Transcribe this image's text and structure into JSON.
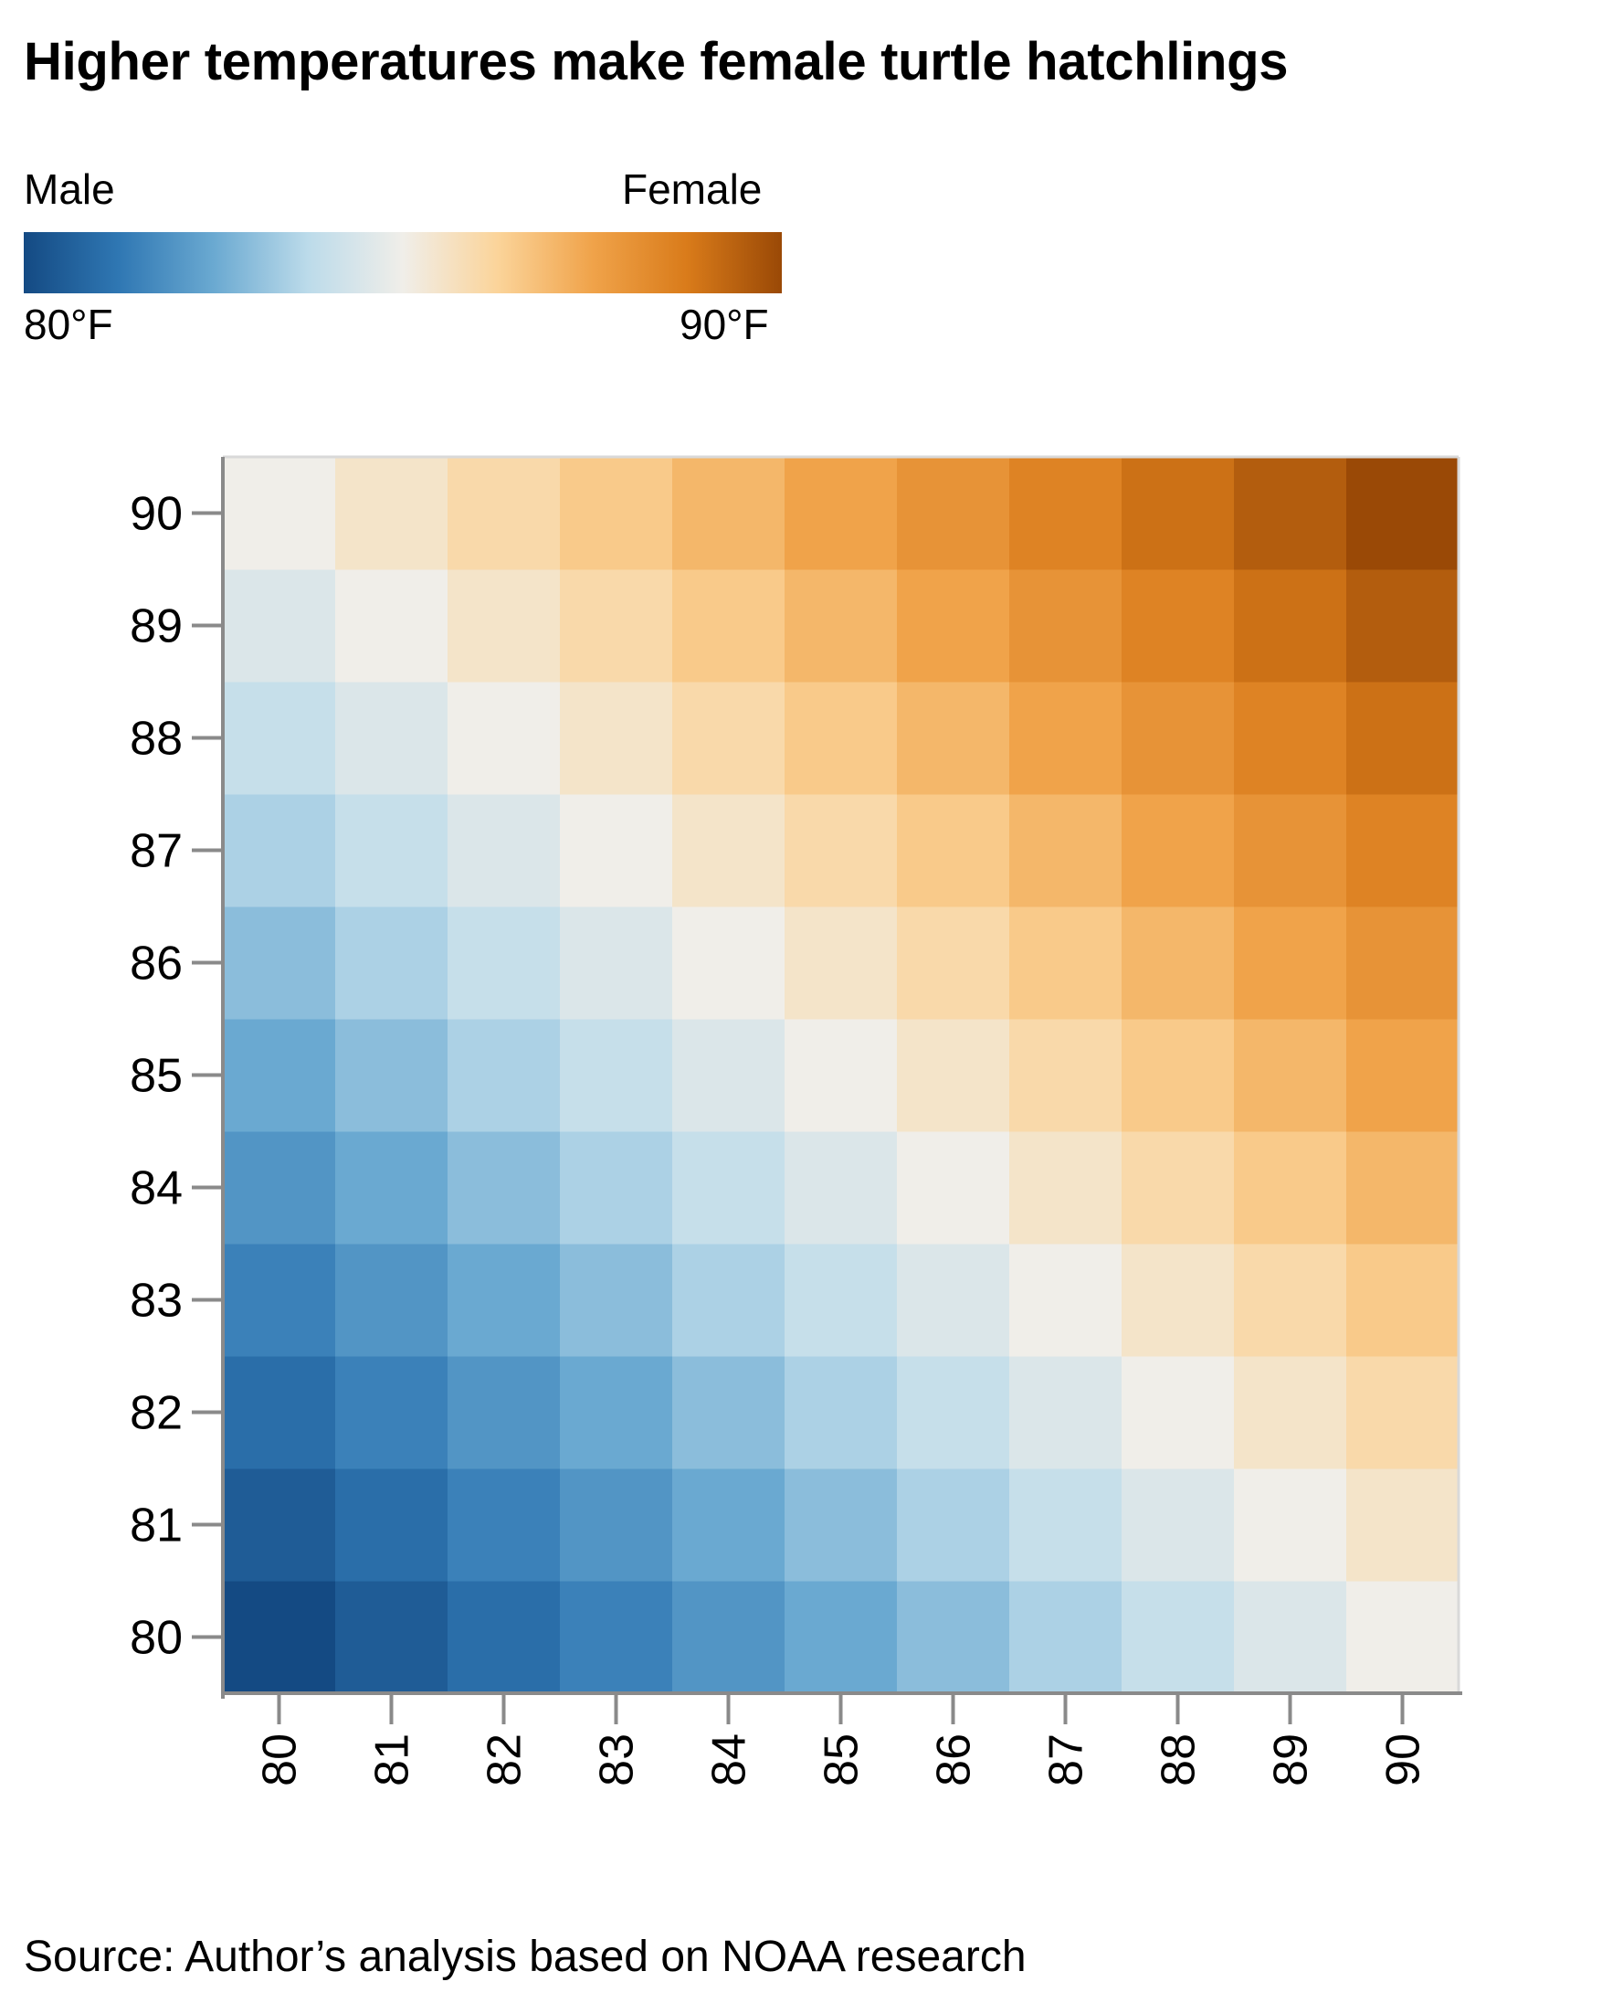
{
  "chart_data": {
    "type": "heatmap",
    "title": "Higher temperatures make female turtle hatchlings",
    "legend": {
      "left_label": "Male",
      "right_label": "Female",
      "min_label": "80°F",
      "max_label": "90°F",
      "min": 80,
      "max": 90,
      "colors": [
        "#144a83",
        "#2f77b3",
        "#6aa9d1",
        "#bcdbea",
        "#f0eee9",
        "#fbd49a",
        "#f0a34a",
        "#d97b1a",
        "#9a4906"
      ]
    },
    "x": [
      80,
      81,
      82,
      83,
      84,
      85,
      86,
      87,
      88,
      89,
      90
    ],
    "y": [
      80,
      81,
      82,
      83,
      84,
      85,
      86,
      87,
      88,
      89,
      90
    ],
    "value_rule": "cell value = (x + y) / 2",
    "xlim": [
      80,
      90
    ],
    "ylim": [
      80,
      90
    ],
    "grid": false,
    "source": "Source: Author’s analysis based on NOAA research"
  }
}
